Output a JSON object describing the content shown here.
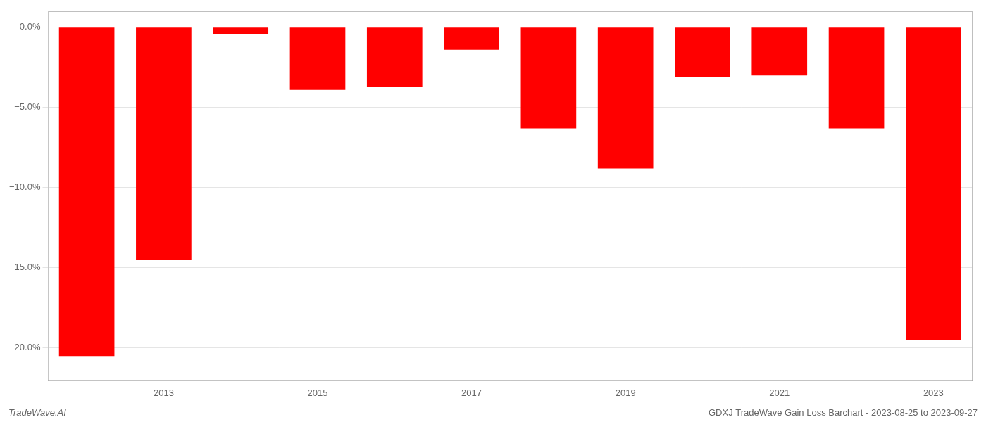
{
  "chart_data": {
    "type": "bar",
    "categories": [
      null,
      "2013",
      null,
      "2015",
      null,
      "2017",
      null,
      "2019",
      null,
      "2021",
      null,
      "2023"
    ],
    "values": [
      -20.5,
      -14.5,
      -0.4,
      -3.9,
      -3.7,
      -1.4,
      -6.3,
      -8.8,
      -3.1,
      -3.0,
      -6.3,
      -19.5
    ],
    "color": "#ff0000",
    "ylim": [
      -22,
      1.0
    ],
    "yticks": [
      {
        "value": 0.0,
        "label": "0.0%"
      },
      {
        "value": -5.0,
        "label": "−5.0%"
      },
      {
        "value": -10.0,
        "label": "−10.0%"
      },
      {
        "value": -15.0,
        "label": "−15.0%"
      },
      {
        "value": -20.0,
        "label": "−20.0%"
      }
    ],
    "grid": true,
    "annotations": [
      "TradeWave.AI",
      "GDXJ TradeWave Gain Loss Barchart - 2023-08-25 to 2023-09-27"
    ]
  }
}
